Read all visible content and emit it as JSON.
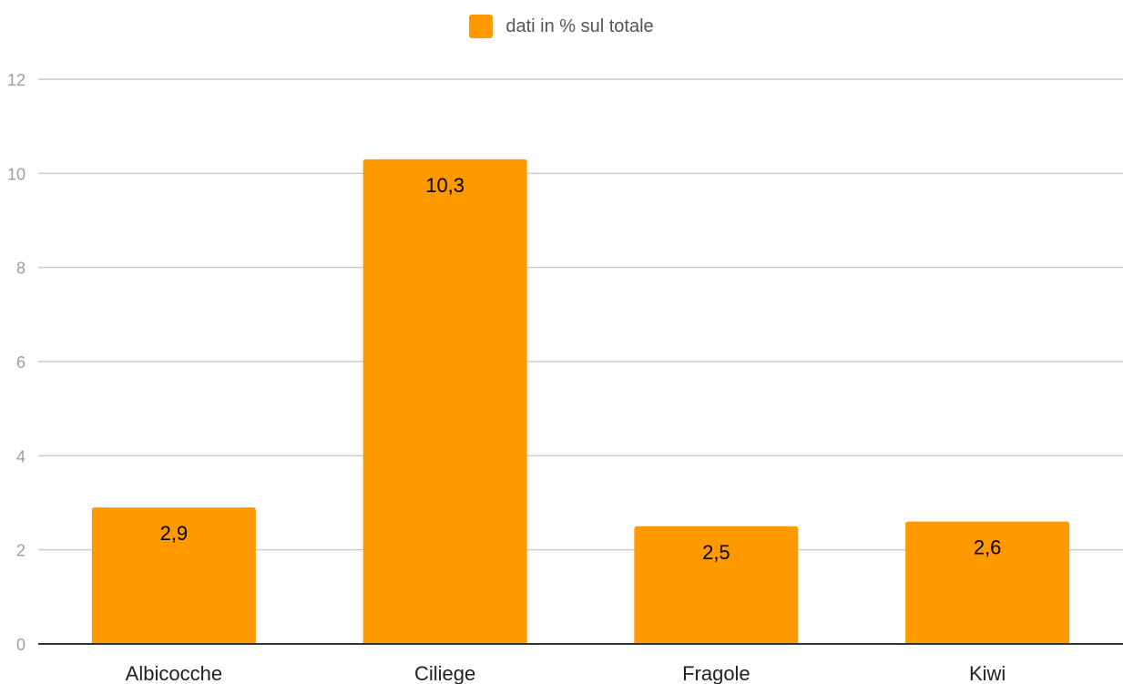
{
  "chart_data": {
    "type": "bar",
    "categories": [
      "Albicocche",
      "Ciliege",
      "Fragole",
      "Kiwi"
    ],
    "series": [
      {
        "name": "dati in % sul totale",
        "values": [
          2.9,
          10.3,
          2.5,
          2.6
        ],
        "value_labels": [
          "2,9",
          "10,3",
          "2,5",
          "2,6"
        ],
        "color": "#FF9900"
      }
    ],
    "ylim": [
      0,
      12
    ],
    "yticks": [
      0,
      2,
      4,
      6,
      8,
      10,
      12
    ],
    "grid": true,
    "legend_position": "top-center",
    "title": "",
    "xlabel": "",
    "ylabel": ""
  }
}
